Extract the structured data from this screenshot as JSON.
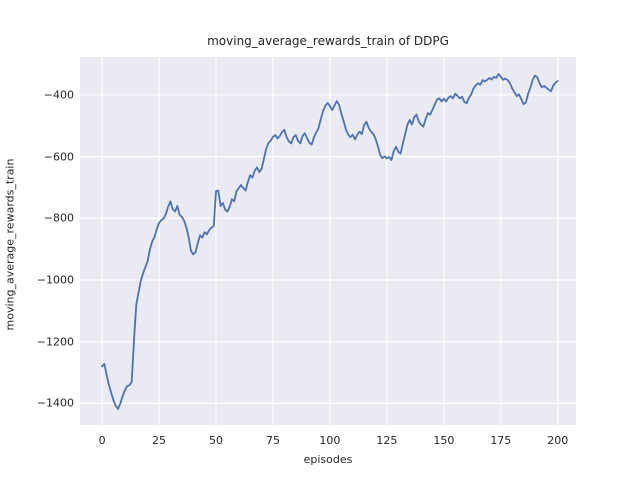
{
  "figure": {
    "title": "moving_average_rewards_train of DDPG",
    "xlabel": "episodes",
    "ylabel": "moving_average_rewards_train"
  },
  "chart_data": {
    "type": "line",
    "title": "moving_average_rewards_train of DDPG",
    "xlabel": "episodes",
    "ylabel": "moving_average_rewards_train",
    "grid": true,
    "legend": "none",
    "plot_bg_color": "#eaeaf2",
    "grid_color": "#ffffff",
    "line_color": "#4c72b0",
    "text_color": "#262626",
    "xlim": [
      -9.7,
      208
    ],
    "ylim": [
      -1470,
      -277
    ],
    "xticks": [
      0,
      25,
      50,
      75,
      100,
      125,
      150,
      175,
      200
    ],
    "xtick_labels": [
      "0",
      "25",
      "50",
      "75",
      "100",
      "125",
      "150",
      "175",
      "200"
    ],
    "yticks": [
      -400,
      -600,
      -800,
      -1000,
      -1200,
      -1400
    ],
    "ytick_labels": [
      "−400",
      "−600",
      "−800",
      "−1000",
      "−1200",
      "−1400"
    ],
    "series": [
      {
        "name": "moving_average_rewards_train",
        "x_start": 0,
        "x_step": 1,
        "values": [
          -1280,
          -1272,
          -1308,
          -1340,
          -1366,
          -1390,
          -1408,
          -1418,
          -1400,
          -1377,
          -1357,
          -1344,
          -1341,
          -1330,
          -1195,
          -1080,
          -1040,
          -1002,
          -978,
          -958,
          -938,
          -900,
          -875,
          -860,
          -835,
          -815,
          -806,
          -800,
          -786,
          -762,
          -745,
          -770,
          -778,
          -760,
          -788,
          -795,
          -808,
          -830,
          -862,
          -905,
          -917,
          -910,
          -880,
          -855,
          -862,
          -845,
          -852,
          -838,
          -830,
          -825,
          -712,
          -710,
          -760,
          -750,
          -772,
          -778,
          -762,
          -738,
          -745,
          -712,
          -702,
          -692,
          -702,
          -710,
          -682,
          -660,
          -668,
          -645,
          -635,
          -650,
          -640,
          -608,
          -575,
          -556,
          -548,
          -536,
          -530,
          -541,
          -533,
          -520,
          -513,
          -537,
          -551,
          -557,
          -537,
          -530,
          -549,
          -557,
          -533,
          -524,
          -541,
          -555,
          -561,
          -537,
          -521,
          -508,
          -478,
          -452,
          -435,
          -426,
          -436,
          -449,
          -434,
          -420,
          -432,
          -460,
          -485,
          -512,
          -528,
          -537,
          -529,
          -544,
          -529,
          -519,
          -527,
          -498,
          -487,
          -506,
          -519,
          -526,
          -541,
          -565,
          -594,
          -605,
          -599,
          -606,
          -601,
          -611,
          -582,
          -568,
          -584,
          -590,
          -558,
          -528,
          -497,
          -481,
          -496,
          -472,
          -464,
          -486,
          -497,
          -503,
          -478,
          -459,
          -464,
          -448,
          -431,
          -415,
          -411,
          -421,
          -412,
          -421,
          -409,
          -404,
          -411,
          -396,
          -403,
          -411,
          -406,
          -423,
          -427,
          -409,
          -398,
          -379,
          -369,
          -362,
          -367,
          -352,
          -356,
          -351,
          -345,
          -350,
          -341,
          -345,
          -332,
          -341,
          -351,
          -347,
          -352,
          -362,
          -379,
          -391,
          -404,
          -398,
          -414,
          -430,
          -424,
          -396,
          -376,
          -351,
          -337,
          -343,
          -362,
          -375,
          -371,
          -377,
          -383,
          -388,
          -370,
          -360,
          -355
        ]
      }
    ]
  }
}
